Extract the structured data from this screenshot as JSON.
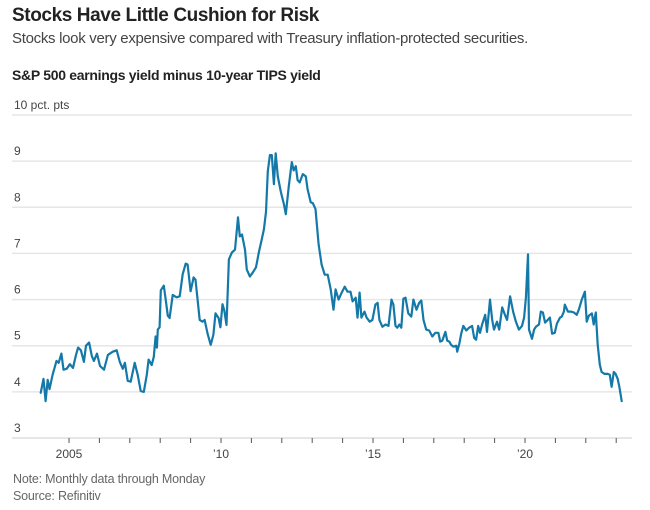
{
  "header": {
    "title": "Stocks Have Little Cushion for Risk",
    "subtitle": "Stocks look very expensive compared with Treasury inflation-protected securities."
  },
  "footer": {
    "note": "Note: Monthly data through Monday",
    "source": "Source: Refinitiv"
  },
  "colors": {
    "line": "#1479a8",
    "grid": "#e6e6e6",
    "tick": "#555555"
  },
  "chart_data": {
    "type": "line",
    "title": "S&P 500 earnings yield minus 10-year TIPS yield",
    "xlabel": "",
    "ylabel": "pct. pts",
    "ylim": [
      3,
      10
    ],
    "xlim": [
      2004.0,
      2023.7
    ],
    "y_ticks": [
      {
        "value": 10,
        "label": "10 pct. pts"
      },
      {
        "value": 9,
        "label": "9"
      },
      {
        "value": 8,
        "label": "8"
      },
      {
        "value": 7,
        "label": "7"
      },
      {
        "value": 6,
        "label": "6"
      },
      {
        "value": 5,
        "label": "5"
      },
      {
        "value": 4,
        "label": "4"
      },
      {
        "value": 3,
        "label": "3"
      }
    ],
    "x_ticks": [
      2005,
      2006,
      2007,
      2008,
      2009,
      2010,
      2011,
      2012,
      2013,
      2014,
      2015,
      2016,
      2017,
      2018,
      2019,
      2020,
      2021,
      2022,
      2023
    ],
    "x_tick_labels": [
      {
        "value": 2005,
        "label": "2005"
      },
      {
        "value": 2010,
        "label": "’10"
      },
      {
        "value": 2015,
        "label": "’15"
      },
      {
        "value": 2020,
        "label": "’20"
      }
    ],
    "grid": true,
    "legend": "none",
    "series": [
      {
        "name": "S&P 500 earnings yield minus 10-year TIPS yield",
        "points": [
          [
            2004.07,
            3.98
          ],
          [
            2004.16,
            4.28
          ],
          [
            2004.23,
            3.8
          ],
          [
            2004.3,
            4.26
          ],
          [
            2004.36,
            4.06
          ],
          [
            2004.46,
            4.37
          ],
          [
            2004.59,
            4.67
          ],
          [
            2004.66,
            4.63
          ],
          [
            2004.75,
            4.83
          ],
          [
            2004.82,
            4.48
          ],
          [
            2004.92,
            4.5
          ],
          [
            2005.03,
            4.6
          ],
          [
            2005.13,
            4.52
          ],
          [
            2005.23,
            4.8
          ],
          [
            2005.3,
            4.96
          ],
          [
            2005.39,
            4.9
          ],
          [
            2005.49,
            4.65
          ],
          [
            2005.56,
            5.0
          ],
          [
            2005.66,
            5.07
          ],
          [
            2005.75,
            4.78
          ],
          [
            2005.82,
            4.67
          ],
          [
            2005.92,
            4.83
          ],
          [
            2006.02,
            4.56
          ],
          [
            2006.15,
            4.48
          ],
          [
            2006.28,
            4.8
          ],
          [
            2006.44,
            4.87
          ],
          [
            2006.57,
            4.9
          ],
          [
            2006.67,
            4.65
          ],
          [
            2006.77,
            4.5
          ],
          [
            2006.84,
            4.63
          ],
          [
            2006.93,
            4.24
          ],
          [
            2007.03,
            4.22
          ],
          [
            2007.16,
            4.63
          ],
          [
            2007.26,
            4.37
          ],
          [
            2007.36,
            4.02
          ],
          [
            2007.46,
            4.0
          ],
          [
            2007.56,
            4.37
          ],
          [
            2007.62,
            4.7
          ],
          [
            2007.72,
            4.58
          ],
          [
            2007.79,
            4.76
          ],
          [
            2007.85,
            5.2
          ],
          [
            2007.89,
            4.96
          ],
          [
            2007.92,
            5.35
          ],
          [
            2007.98,
            5.4
          ],
          [
            2008.02,
            6.2
          ],
          [
            2008.12,
            6.3
          ],
          [
            2008.18,
            6.0
          ],
          [
            2008.25,
            5.65
          ],
          [
            2008.31,
            5.6
          ],
          [
            2008.41,
            6.1
          ],
          [
            2008.54,
            6.05
          ],
          [
            2008.64,
            6.07
          ],
          [
            2008.74,
            6.55
          ],
          [
            2008.84,
            6.78
          ],
          [
            2008.9,
            6.76
          ],
          [
            2009.0,
            6.18
          ],
          [
            2009.1,
            6.48
          ],
          [
            2009.16,
            6.43
          ],
          [
            2009.3,
            5.56
          ],
          [
            2009.39,
            5.52
          ],
          [
            2009.46,
            5.56
          ],
          [
            2009.56,
            5.26
          ],
          [
            2009.66,
            5.02
          ],
          [
            2009.75,
            5.24
          ],
          [
            2009.82,
            5.7
          ],
          [
            2009.92,
            5.6
          ],
          [
            2009.98,
            5.4
          ],
          [
            2010.05,
            5.9
          ],
          [
            2010.11,
            5.76
          ],
          [
            2010.18,
            5.45
          ],
          [
            2010.26,
            6.87
          ],
          [
            2010.36,
            7.02
          ],
          [
            2010.46,
            7.08
          ],
          [
            2010.56,
            7.78
          ],
          [
            2010.62,
            7.37
          ],
          [
            2010.69,
            7.41
          ],
          [
            2010.79,
            7.08
          ],
          [
            2010.85,
            6.65
          ],
          [
            2010.95,
            6.5
          ],
          [
            2011.05,
            6.59
          ],
          [
            2011.15,
            6.7
          ],
          [
            2011.25,
            7.04
          ],
          [
            2011.34,
            7.3
          ],
          [
            2011.41,
            7.52
          ],
          [
            2011.48,
            7.9
          ],
          [
            2011.54,
            8.78
          ],
          [
            2011.61,
            9.13
          ],
          [
            2011.67,
            9.13
          ],
          [
            2011.74,
            8.5
          ],
          [
            2011.8,
            9.17
          ],
          [
            2011.87,
            8.67
          ],
          [
            2011.97,
            8.33
          ],
          [
            2012.07,
            8.07
          ],
          [
            2012.13,
            7.85
          ],
          [
            2012.23,
            8.46
          ],
          [
            2012.33,
            8.98
          ],
          [
            2012.39,
            8.8
          ],
          [
            2012.46,
            8.89
          ],
          [
            2012.52,
            8.59
          ],
          [
            2012.59,
            8.54
          ],
          [
            2012.69,
            8.72
          ],
          [
            2012.79,
            8.67
          ],
          [
            2012.85,
            8.39
          ],
          [
            2012.95,
            8.11
          ],
          [
            2013.02,
            8.09
          ],
          [
            2013.11,
            7.96
          ],
          [
            2013.21,
            7.2
          ],
          [
            2013.31,
            6.76
          ],
          [
            2013.41,
            6.54
          ],
          [
            2013.51,
            6.54
          ],
          [
            2013.61,
            6.22
          ],
          [
            2013.7,
            5.78
          ],
          [
            2013.77,
            6.22
          ],
          [
            2013.87,
            6.0
          ],
          [
            2013.97,
            6.15
          ],
          [
            2014.07,
            6.28
          ],
          [
            2014.16,
            6.17
          ],
          [
            2014.26,
            6.17
          ],
          [
            2014.33,
            5.96
          ],
          [
            2014.43,
            6.04
          ],
          [
            2014.49,
            5.61
          ],
          [
            2014.56,
            6.15
          ],
          [
            2014.62,
            5.61
          ],
          [
            2014.72,
            5.74
          ],
          [
            2014.79,
            5.61
          ],
          [
            2014.89,
            5.52
          ],
          [
            2014.98,
            5.56
          ],
          [
            2015.08,
            5.89
          ],
          [
            2015.15,
            5.93
          ],
          [
            2015.21,
            5.56
          ],
          [
            2015.31,
            5.41
          ],
          [
            2015.41,
            5.46
          ],
          [
            2015.51,
            5.43
          ],
          [
            2015.61,
            6.0
          ],
          [
            2015.67,
            5.89
          ],
          [
            2015.74,
            5.43
          ],
          [
            2015.8,
            5.39
          ],
          [
            2015.87,
            5.46
          ],
          [
            2015.93,
            5.39
          ],
          [
            2016.0,
            6.02
          ],
          [
            2016.07,
            6.04
          ],
          [
            2016.16,
            5.7
          ],
          [
            2016.26,
            5.63
          ],
          [
            2016.33,
            6.0
          ],
          [
            2016.43,
            5.78
          ],
          [
            2016.52,
            5.93
          ],
          [
            2016.59,
            5.98
          ],
          [
            2016.66,
            5.56
          ],
          [
            2016.75,
            5.35
          ],
          [
            2016.85,
            5.33
          ],
          [
            2016.95,
            5.2
          ],
          [
            2017.05,
            5.28
          ],
          [
            2017.15,
            5.28
          ],
          [
            2017.21,
            5.09
          ],
          [
            2017.28,
            5.11
          ],
          [
            2017.38,
            5.3
          ],
          [
            2017.44,
            5.11
          ],
          [
            2017.51,
            5.09
          ],
          [
            2017.57,
            5.02
          ],
          [
            2017.64,
            4.98
          ],
          [
            2017.74,
            5.0
          ],
          [
            2017.77,
            4.87
          ],
          [
            2017.84,
            5.04
          ],
          [
            2017.9,
            5.26
          ],
          [
            2017.97,
            5.43
          ],
          [
            2018.07,
            5.33
          ],
          [
            2018.16,
            5.39
          ],
          [
            2018.26,
            5.43
          ],
          [
            2018.33,
            5.17
          ],
          [
            2018.39,
            5.13
          ],
          [
            2018.46,
            5.43
          ],
          [
            2018.52,
            5.28
          ],
          [
            2018.59,
            5.46
          ],
          [
            2018.69,
            5.67
          ],
          [
            2018.75,
            5.3
          ],
          [
            2018.85,
            6.0
          ],
          [
            2018.92,
            5.56
          ],
          [
            2018.98,
            5.35
          ],
          [
            2019.08,
            5.52
          ],
          [
            2019.15,
            5.35
          ],
          [
            2019.25,
            5.83
          ],
          [
            2019.34,
            5.67
          ],
          [
            2019.41,
            5.56
          ],
          [
            2019.51,
            6.07
          ],
          [
            2019.61,
            5.74
          ],
          [
            2019.7,
            5.52
          ],
          [
            2019.8,
            5.35
          ],
          [
            2019.9,
            5.43
          ],
          [
            2019.97,
            5.61
          ],
          [
            2020.03,
            6.04
          ],
          [
            2020.1,
            6.98
          ],
          [
            2020.13,
            5.35
          ],
          [
            2020.23,
            5.15
          ],
          [
            2020.3,
            5.35
          ],
          [
            2020.36,
            5.41
          ],
          [
            2020.46,
            5.46
          ],
          [
            2020.52,
            5.74
          ],
          [
            2020.59,
            5.72
          ],
          [
            2020.66,
            5.5
          ],
          [
            2020.75,
            5.56
          ],
          [
            2020.82,
            5.61
          ],
          [
            2020.89,
            5.26
          ],
          [
            2020.98,
            5.28
          ],
          [
            2021.05,
            5.48
          ],
          [
            2021.15,
            5.61
          ],
          [
            2021.21,
            5.63
          ],
          [
            2021.28,
            5.74
          ],
          [
            2021.31,
            5.89
          ],
          [
            2021.41,
            5.74
          ],
          [
            2021.51,
            5.74
          ],
          [
            2021.61,
            5.72
          ],
          [
            2021.7,
            5.67
          ],
          [
            2021.77,
            5.78
          ],
          [
            2021.87,
            6.0
          ],
          [
            2021.97,
            6.17
          ],
          [
            2022.03,
            5.52
          ],
          [
            2022.1,
            5.65
          ],
          [
            2022.2,
            5.7
          ],
          [
            2022.26,
            5.46
          ],
          [
            2022.33,
            5.72
          ],
          [
            2022.39,
            5.02
          ],
          [
            2022.46,
            4.59
          ],
          [
            2022.52,
            4.43
          ],
          [
            2022.62,
            4.39
          ],
          [
            2022.72,
            4.39
          ],
          [
            2022.79,
            4.37
          ],
          [
            2022.85,
            4.11
          ],
          [
            2022.92,
            4.43
          ],
          [
            2022.98,
            4.39
          ],
          [
            2023.05,
            4.28
          ],
          [
            2023.11,
            4.09
          ],
          [
            2023.18,
            3.8
          ]
        ]
      }
    ]
  }
}
